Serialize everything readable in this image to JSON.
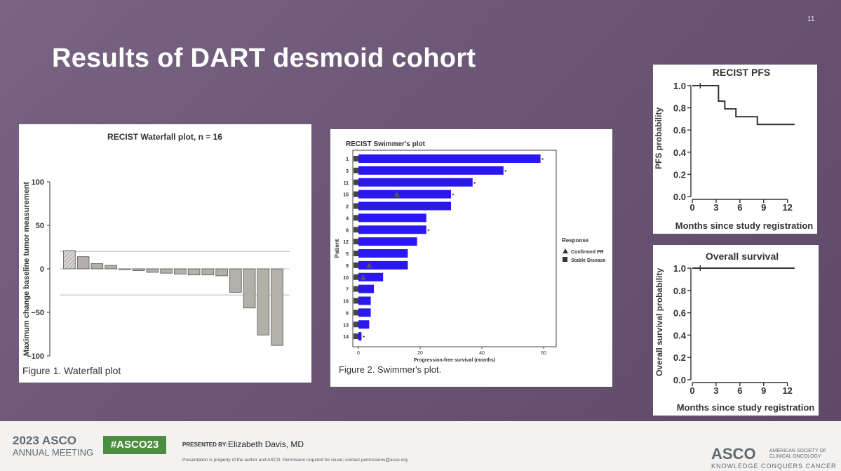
{
  "slide": {
    "page_number": "11",
    "title": "Results of DART desmoid cohort"
  },
  "figure1": {
    "caption_prefix": "Figure 1.",
    "caption_text": "Waterfall plot"
  },
  "figure2": {
    "caption": "Figure 2. Swimmer's plot."
  },
  "footer": {
    "year_brand": "2023 ASCO",
    "meeting": "ANNUAL MEETING",
    "hashtag": "#ASCO23",
    "presented_by_label": "PRESENTED BY:",
    "presenter": "Elizabeth Davis, MD",
    "disclaimer": "Presentation is property of the author and ASCO. Permission required for reuse; contact permissions@asco.org.",
    "logo": "ASCO",
    "org_name_line1": "AMERICAN SOCIETY OF",
    "org_name_line2": "CLINICAL ONCOLOGY",
    "tagline": "KNOWLEDGE CONQUERS CANCER"
  },
  "colors": {
    "bar_blue": "#2b18f0",
    "waterfall_bar": "#b3b0aa",
    "curve": "#333333"
  },
  "chart_data": [
    {
      "type": "bar",
      "title": "RECIST Waterfall plot, n =  16",
      "xlabel": "",
      "ylabel": "Maximum change baseline tumor measurement",
      "ylim": [
        -100,
        100
      ],
      "yticks": [
        "100",
        "50",
        "0",
        "−50",
        "−100"
      ],
      "ytick_values": [
        100,
        50,
        0,
        -50,
        -100
      ],
      "reference_lines": [
        20,
        -30
      ],
      "values": [
        21,
        14,
        6,
        4,
        0,
        -2,
        -4,
        -5,
        -6,
        -7,
        -7,
        -8,
        -27,
        -45,
        -76,
        -88
      ],
      "hatched_first": true
    },
    {
      "type": "bar",
      "orientation": "horizontal",
      "title": "RECIST Swimmer's plot",
      "xlabel": "Progression-free survival (months)",
      "ylabel": "Patient",
      "xlim": [
        0,
        60
      ],
      "xticks": [
        "0",
        "20",
        "40",
        "60"
      ],
      "xtick_values": [
        0,
        20,
        40,
        60
      ],
      "categories": [
        "1",
        "3",
        "11",
        "15",
        "2",
        "4",
        "8",
        "12",
        "5",
        "9",
        "10",
        "7",
        "16",
        "6",
        "13",
        "14"
      ],
      "values": [
        59,
        47,
        37,
        30,
        30,
        22,
        22,
        19,
        16,
        16,
        8,
        5,
        4,
        4,
        3.5,
        1
      ],
      "ongoing": [
        true,
        true,
        true,
        true,
        false,
        false,
        true,
        false,
        false,
        false,
        false,
        false,
        false,
        false,
        false,
        true
      ],
      "confirmed_pr_month": [
        null,
        null,
        null,
        12.5,
        null,
        null,
        null,
        null,
        null,
        3.5,
        1.5,
        null,
        null,
        null,
        null,
        null
      ],
      "legend_title": "Response",
      "legend": [
        "Confirmed PR",
        "Stable Disease"
      ],
      "legend_position": "right"
    },
    {
      "type": "line",
      "title": "RECIST PFS",
      "xlabel": "Months since study registration",
      "ylabel": "PFS probability",
      "xlim": [
        0,
        13
      ],
      "ylim": [
        0,
        1
      ],
      "xticks": [
        "0",
        "3",
        "6",
        "9",
        "12"
      ],
      "xtick_values": [
        0,
        3,
        6,
        9,
        12
      ],
      "yticks": [
        "1.0",
        "0.8",
        "0.6",
        "0.4",
        "0.2",
        "0.0"
      ],
      "ytick_values": [
        1,
        0.8,
        0.6,
        0.4,
        0.2,
        0
      ],
      "step_x": [
        0,
        3.3,
        3.3,
        4.1,
        4.1,
        5.5,
        5.5,
        8.2,
        8.2,
        12.9
      ],
      "step_y": [
        1.0,
        1.0,
        0.86,
        0.86,
        0.79,
        0.79,
        0.72,
        0.72,
        0.65,
        0.65
      ],
      "censor_x": [
        1
      ]
    },
    {
      "type": "line",
      "title": "Overall survival",
      "xlabel": "Months since study registration",
      "ylabel": "Overall survival probability",
      "xlim": [
        0,
        13
      ],
      "ylim": [
        0,
        1
      ],
      "xticks": [
        "0",
        "3",
        "6",
        "9",
        "12"
      ],
      "xtick_values": [
        0,
        3,
        6,
        9,
        12
      ],
      "yticks": [
        "1.0",
        "0.8",
        "0.6",
        "0.4",
        "0.2",
        "0.0"
      ],
      "ytick_values": [
        1,
        0.8,
        0.6,
        0.4,
        0.2,
        0
      ],
      "step_x": [
        0,
        12.9
      ],
      "step_y": [
        1.0,
        1.0
      ],
      "censor_x": [
        1
      ]
    }
  ]
}
